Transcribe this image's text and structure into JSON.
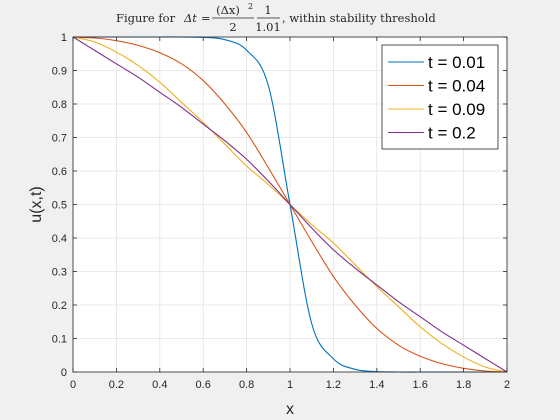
{
  "chart_data": {
    "type": "line",
    "title": {
      "prefix": "Figure for ",
      "delta_t": "Δt",
      "equals": " = ",
      "frac1_num": "(Δx)",
      "frac1_exp": "2",
      "frac1_den": "2",
      "frac2_num": "1",
      "frac2_den": "1.01",
      "suffix": ", within stability threshold"
    },
    "xlabel": "x",
    "ylabel": "u(x,t)",
    "xlim": [
      0,
      2
    ],
    "ylim": [
      0,
      1
    ],
    "xticks": [
      0,
      0.2,
      0.4,
      0.6,
      0.8,
      1,
      1.2,
      1.4,
      1.6,
      1.8,
      2
    ],
    "yticks": [
      0,
      0.1,
      0.2,
      0.3,
      0.4,
      0.5,
      0.6,
      0.7,
      0.8,
      0.9,
      1
    ],
    "grid": true,
    "legend_position": "top-right",
    "x": [
      0,
      0.1,
      0.2,
      0.3,
      0.4,
      0.5,
      0.6,
      0.7,
      0.8,
      0.9,
      1.0,
      1.1,
      1.2,
      1.3,
      1.4,
      1.5,
      1.6,
      1.7,
      1.8,
      1.9,
      2.0
    ],
    "series": [
      {
        "name": "t = 0.01",
        "color": "#0072BD",
        "values": [
          1,
          1,
          1,
          1,
          1,
          1,
          0.999,
          0.992,
          0.9605,
          0.8555,
          0.5,
          0.1445,
          0.0395,
          0.008,
          0.001,
          0,
          0,
          0,
          0,
          0,
          0
        ]
      },
      {
        "name": "t = 0.04",
        "color": "#D95319",
        "values": [
          1,
          0.997,
          0.989,
          0.975,
          0.953,
          0.92,
          0.87,
          0.8,
          0.715,
          0.61,
          0.5,
          0.39,
          0.285,
          0.2,
          0.13,
          0.08,
          0.047,
          0.025,
          0.011,
          0.003,
          0
        ]
      },
      {
        "name": "t = 0.09",
        "color": "#EDB120",
        "values": [
          1,
          0.985,
          0.955,
          0.915,
          0.865,
          0.805,
          0.745,
          0.68,
          0.615,
          0.56,
          0.5,
          0.44,
          0.385,
          0.32,
          0.255,
          0.195,
          0.135,
          0.085,
          0.045,
          0.015,
          0
        ]
      },
      {
        "name": "t = 0.2",
        "color": "#7E2F8E",
        "values": [
          1,
          0.96,
          0.92,
          0.88,
          0.835,
          0.79,
          0.74,
          0.69,
          0.635,
          0.57,
          0.5,
          0.43,
          0.365,
          0.31,
          0.26,
          0.21,
          0.165,
          0.12,
          0.08,
          0.04,
          0
        ]
      }
    ]
  }
}
